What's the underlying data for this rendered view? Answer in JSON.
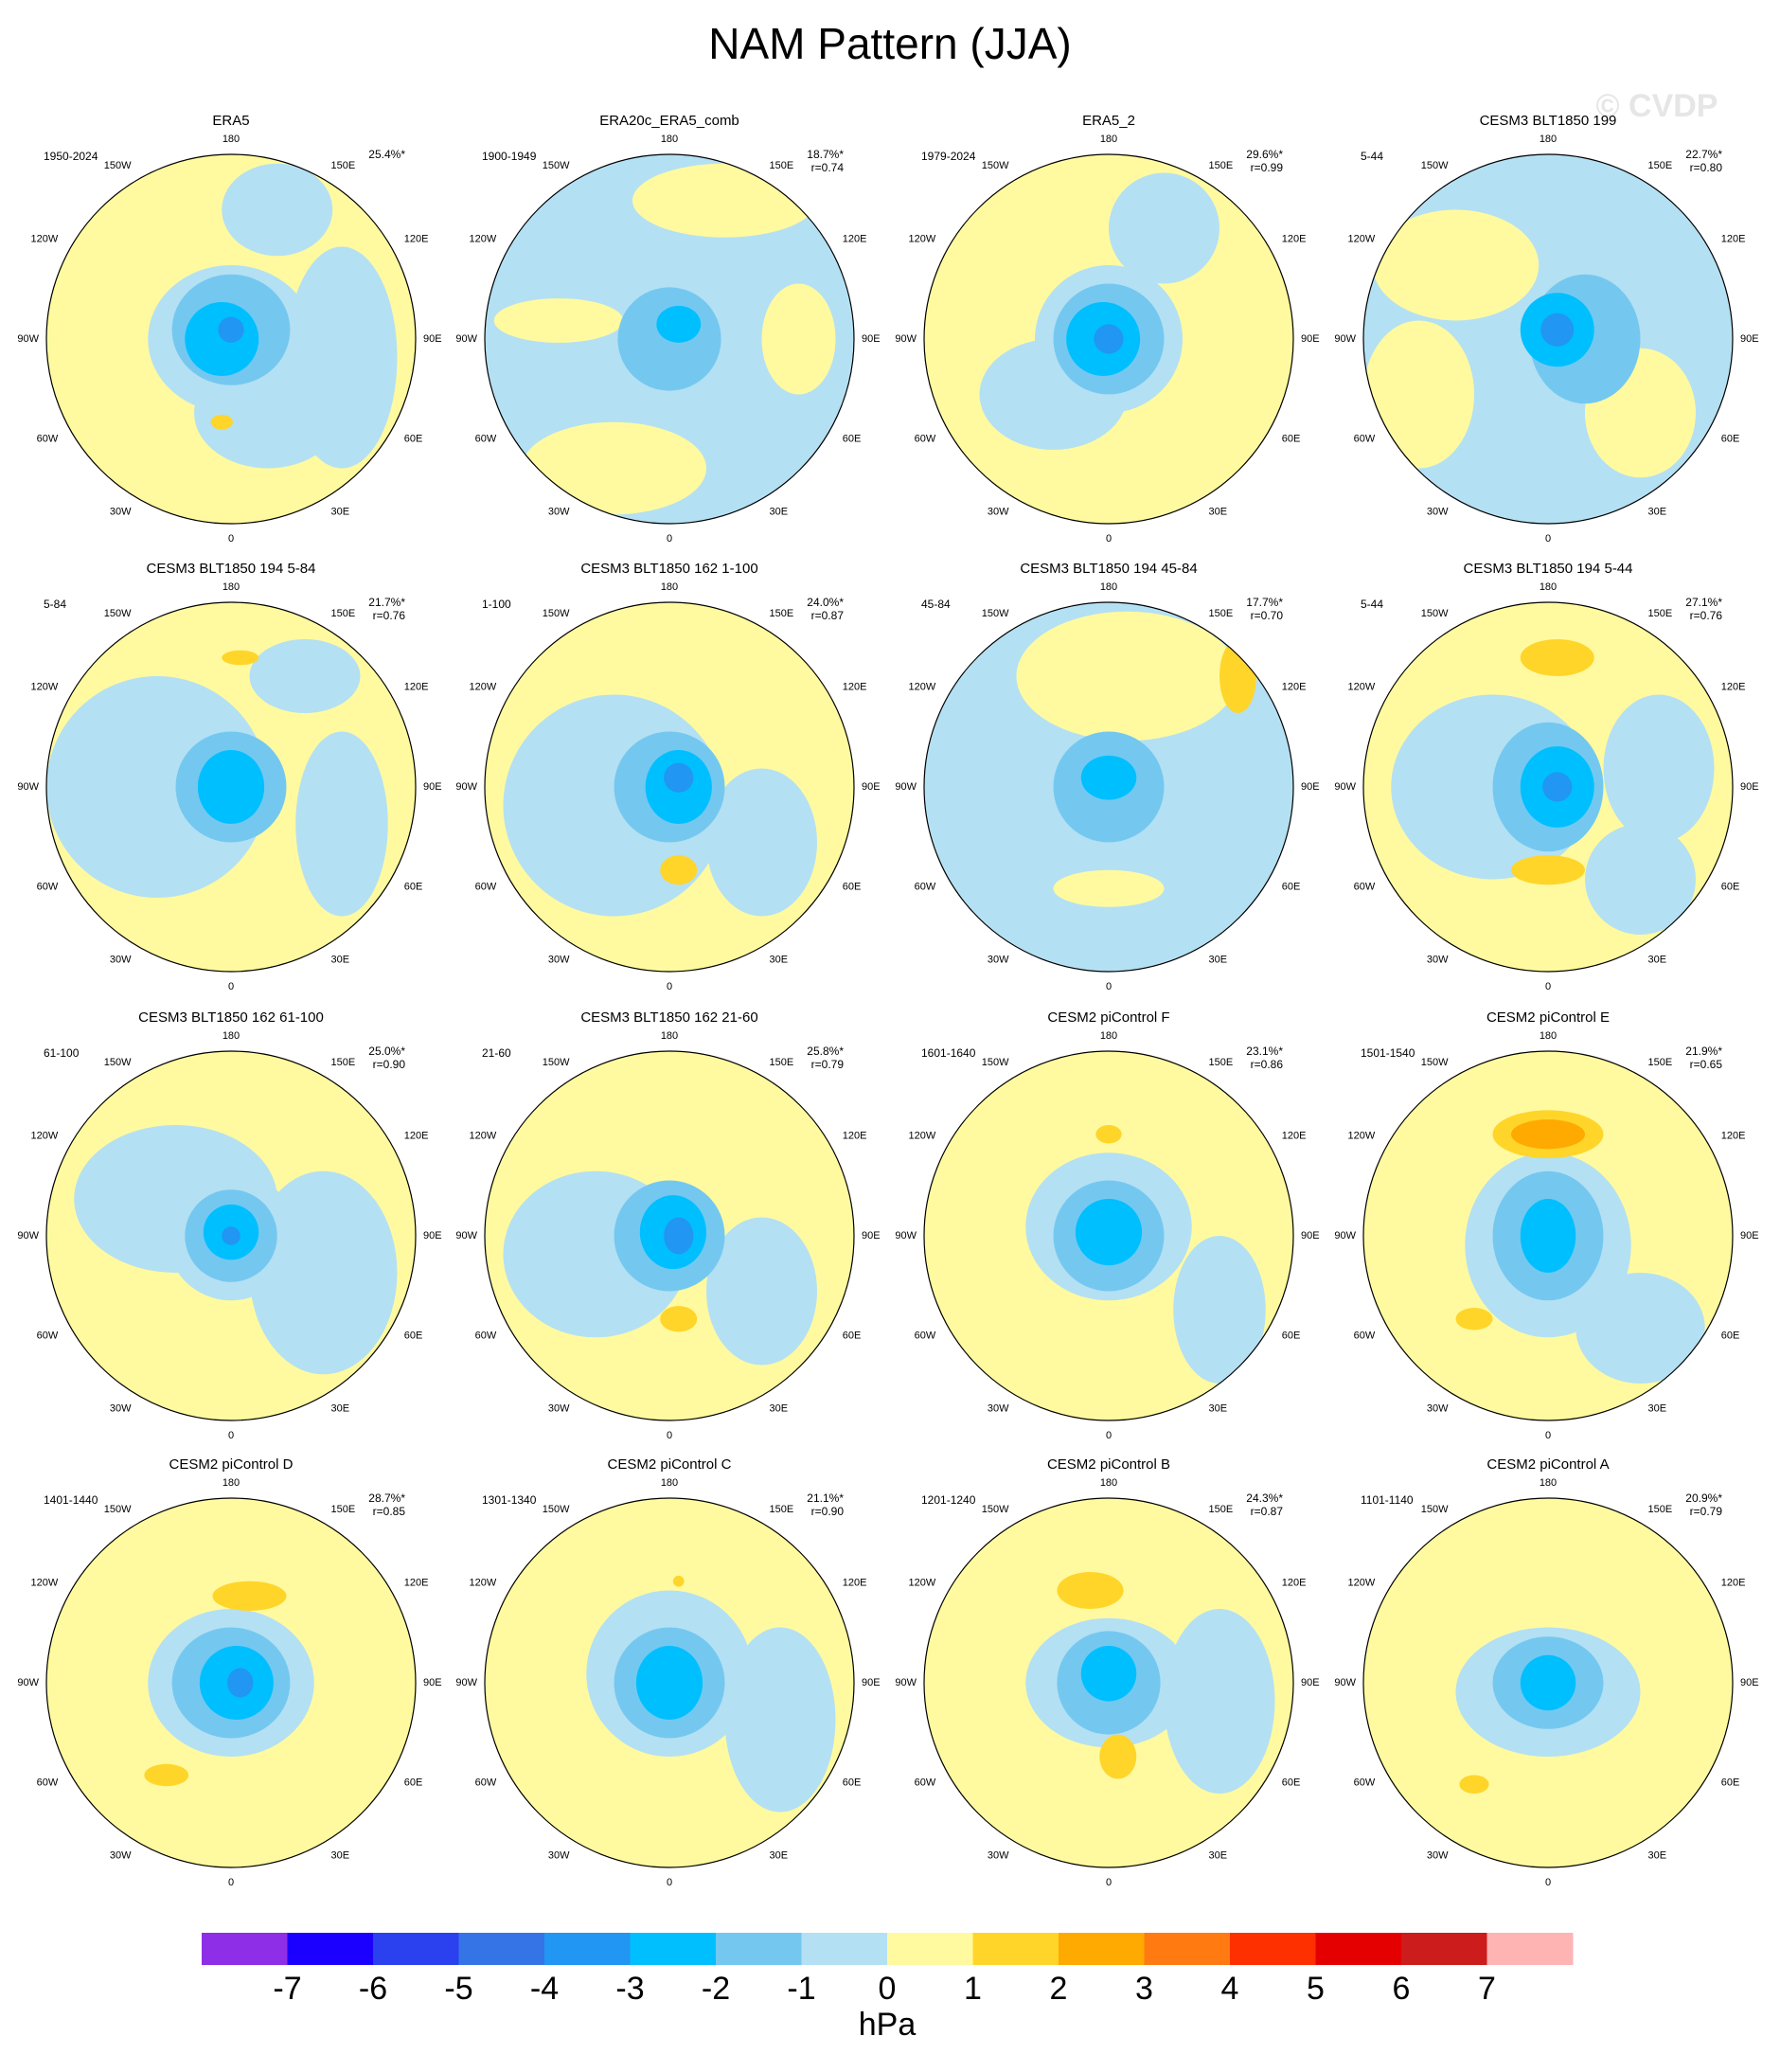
{
  "title": "NAM Pattern (JJA)",
  "watermark": "© CVDP",
  "lon_labels": [
    "180",
    "150E",
    "120E",
    "90E",
    "60E",
    "30E",
    "0",
    "30W",
    "60W",
    "90W",
    "120W",
    "150W"
  ],
  "panels": [
    {
      "title": "ERA5",
      "period": "1950-2024",
      "pct": "25.4%*"
    },
    {
      "title": "ERA20c_ERA5_comb",
      "period": "1900-1949",
      "pct": "18.7%*",
      "r": "r=0.74"
    },
    {
      "title": "ERA5_2",
      "period": "1979-2024",
      "pct": "29.6%*",
      "r": "r=0.99"
    },
    {
      "title": "CESM3 BLT1850 199",
      "period": "5-44",
      "pct": "22.7%*",
      "r": "r=0.80"
    },
    {
      "title": "CESM3 BLT1850 194 5-84",
      "period": "5-84",
      "pct": "21.7%*",
      "r": "r=0.76"
    },
    {
      "title": "CESM3 BLT1850 162 1-100",
      "period": "1-100",
      "pct": "24.0%*",
      "r": "r=0.87"
    },
    {
      "title": "CESM3 BLT1850 194 45-84",
      "period": "45-84",
      "pct": "17.7%*",
      "r": "r=0.70"
    },
    {
      "title": "CESM3 BLT1850 194 5-44",
      "period": "5-44",
      "pct": "27.1%*",
      "r": "r=0.76"
    },
    {
      "title": "CESM3 BLT1850 162 61-100",
      "period": "61-100",
      "pct": "25.0%*",
      "r": "r=0.90"
    },
    {
      "title": "CESM3 BLT1850 162 21-60",
      "period": "21-60",
      "pct": "25.8%*",
      "r": "r=0.79"
    },
    {
      "title": "CESM2 piControl F",
      "period": "1601-1640",
      "pct": "23.1%*",
      "r": "r=0.86"
    },
    {
      "title": "CESM2 piControl E",
      "period": "1501-1540",
      "pct": "21.9%*",
      "r": "r=0.65"
    },
    {
      "title": "CESM2 piControl D",
      "period": "1401-1440",
      "pct": "28.7%*",
      "r": "r=0.85"
    },
    {
      "title": "CESM2 piControl C",
      "period": "1301-1340",
      "pct": "21.1%*",
      "r": "r=0.90"
    },
    {
      "title": "CESM2 piControl B",
      "period": "1201-1240",
      "pct": "24.3%*",
      "r": "r=0.87"
    },
    {
      "title": "CESM2 piControl A",
      "period": "1101-1140",
      "pct": "20.9%*",
      "r": "r=0.79"
    }
  ],
  "colorbar": {
    "levels": [
      -7,
      -6,
      -5,
      -4,
      -3,
      -2,
      -1,
      0,
      1,
      2,
      3,
      4,
      5,
      6,
      7
    ],
    "colors": [
      "#8e2ee6",
      "#1c00ff",
      "#2b40ee",
      "#3474e6",
      "#2196f3",
      "#00bfff",
      "#74c8f0",
      "#b4e0f3",
      "#fffaa0",
      "#ffd52a",
      "#ffaa00",
      "#ff7a10",
      "#ff3000",
      "#e40000",
      "#cc1c1c",
      "#ffb4b4"
    ],
    "label": "hPa"
  }
}
